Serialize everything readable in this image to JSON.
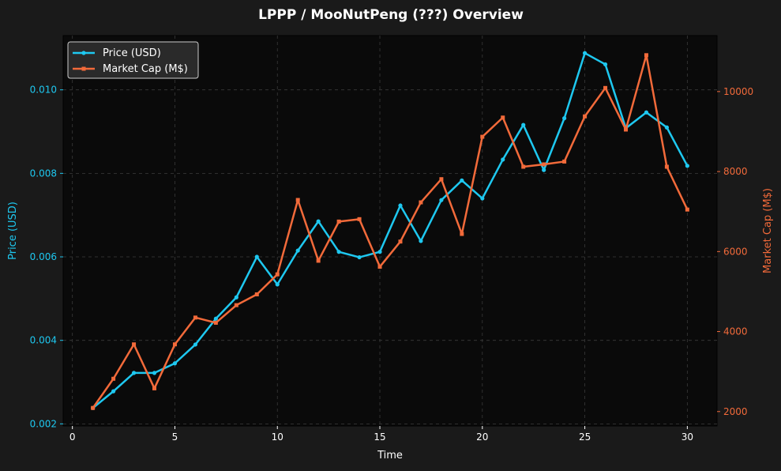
{
  "colors": {
    "background": "#1a1a1a",
    "plot_background": "#0a0a0a",
    "price": "#1ec8f0",
    "market_cap": "#f26a3a",
    "grid": "#3a3a3a",
    "text": "#ffffff"
  },
  "chart_data": {
    "type": "line",
    "title": "LPPP / MooNutPeng (???) Overview",
    "xlabel": "Time",
    "ylabel_left": "Price (USD)",
    "ylabel_right": "Market Cap (M$)",
    "xlim": [
      -0.45,
      31.45
    ],
    "ylim_left": [
      0.00195,
      0.0113
    ],
    "ylim_right": [
      1640,
      11400
    ],
    "x_ticks": [
      0,
      5,
      10,
      15,
      20,
      25,
      30
    ],
    "y_ticks_left": [
      "0.002",
      "0.004",
      "0.006",
      "0.008",
      "0.010"
    ],
    "y_ticks_left_values": [
      0.002,
      0.004,
      0.006,
      0.008,
      0.01
    ],
    "y_ticks_right": [
      "2000",
      "4000",
      "6000",
      "8000",
      "10000"
    ],
    "y_ticks_right_values": [
      2000,
      4000,
      6000,
      8000,
      10000
    ],
    "grid": true,
    "legend_position": "top-left",
    "x": [
      1,
      2,
      3,
      4,
      5,
      6,
      7,
      8,
      9,
      10,
      11,
      12,
      13,
      14,
      15,
      16,
      17,
      18,
      19,
      20,
      21,
      22,
      23,
      24,
      25,
      26,
      27,
      28,
      29,
      30
    ],
    "series": [
      {
        "name": "Price (USD)",
        "axis": "left",
        "marker": "circle",
        "values": [
          0.00238,
          0.00278,
          0.00322,
          0.00322,
          0.00345,
          0.0039,
          0.00452,
          0.00503,
          0.006,
          0.00534,
          0.00615,
          0.00685,
          0.00612,
          0.00599,
          0.00612,
          0.00723,
          0.00638,
          0.00736,
          0.00783,
          0.0074,
          0.00833,
          0.00916,
          0.00808,
          0.00932,
          0.01088,
          0.01061,
          0.00908,
          0.00946,
          0.0091,
          0.00818
        ]
      },
      {
        "name": "Market Cap (M$)",
        "axis": "right",
        "marker": "square",
        "values": [
          2090,
          2820,
          3680,
          2580,
          3680,
          4350,
          4220,
          4660,
          4930,
          5430,
          7290,
          5770,
          6750,
          6810,
          5620,
          6250,
          7230,
          7810,
          6440,
          8870,
          9350,
          8120,
          8180,
          8250,
          9380,
          10090,
          9050,
          10910,
          8120,
          7050
        ]
      }
    ]
  }
}
